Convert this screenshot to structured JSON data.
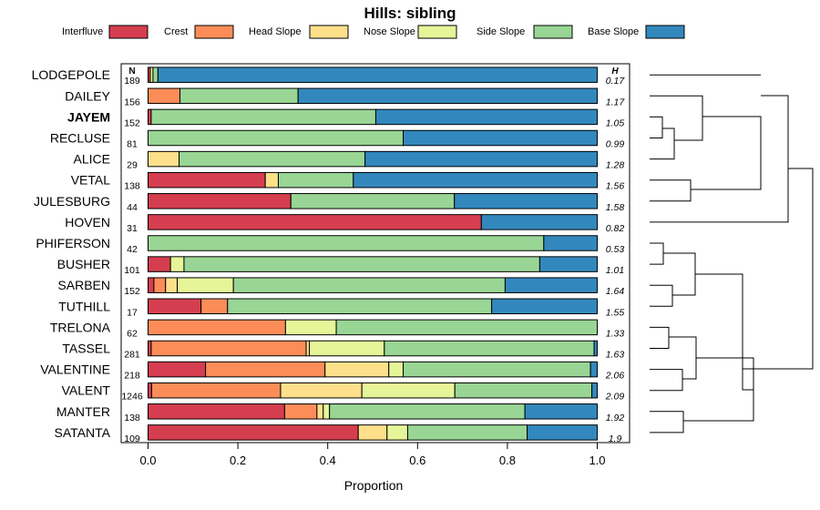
{
  "chart_data": {
    "type": "bar",
    "orientation": "horizontal-stacked",
    "title": "Hills: sibling",
    "xlabel": "Proportion",
    "xlim": [
      0,
      1
    ],
    "xticks": [
      "0.0",
      "0.2",
      "0.4",
      "0.6",
      "0.8",
      "1.0"
    ],
    "n_header": "N",
    "h_header": "H",
    "bold_category": "JAYEM",
    "series": [
      {
        "name": "Interfluve",
        "color": "#d53e4f"
      },
      {
        "name": "Crest",
        "color": "#fc8d59"
      },
      {
        "name": "Head Slope",
        "color": "#fee08b"
      },
      {
        "name": "Nose Slope",
        "color": "#e6f598"
      },
      {
        "name": "Side Slope",
        "color": "#99d594"
      },
      {
        "name": "Base Slope",
        "color": "#3288bd"
      }
    ],
    "rows": [
      {
        "name": "LODGEPOLE",
        "n": "189",
        "h": "0.17",
        "values": [
          0.005,
          0.0,
          0.0,
          0.006,
          0.011,
          0.978
        ]
      },
      {
        "name": "DAILEY",
        "n": "156",
        "h": "1.17",
        "values": [
          0.0,
          0.071,
          0.0,
          0.0,
          0.263,
          0.666
        ]
      },
      {
        "name": "JAYEM",
        "n": "152",
        "h": "1.05",
        "values": [
          0.007,
          0.0,
          0.0,
          0.0,
          0.5,
          0.493
        ]
      },
      {
        "name": "RECLUSE",
        "n": "81",
        "h": "0.99",
        "values": [
          0.0,
          0.0,
          0.0,
          0.0,
          0.568,
          0.432
        ]
      },
      {
        "name": "ALICE",
        "n": "29",
        "h": "1.28",
        "values": [
          0.0,
          0.0,
          0.069,
          0.0,
          0.414,
          0.517
        ]
      },
      {
        "name": "VETAL",
        "n": "138",
        "h": "1.56",
        "values": [
          0.261,
          0.0,
          0.029,
          0.0,
          0.167,
          0.543
        ]
      },
      {
        "name": "JULESBURG",
        "n": "44",
        "h": "1.58",
        "values": [
          0.318,
          0.0,
          0.0,
          0.0,
          0.364,
          0.318
        ]
      },
      {
        "name": "HOVEN",
        "n": "31",
        "h": "0.82",
        "values": [
          0.742,
          0.0,
          0.0,
          0.0,
          0.0,
          0.258
        ]
      },
      {
        "name": "PHIFERSON",
        "n": "42",
        "h": "0.53",
        "values": [
          0.0,
          0.0,
          0.0,
          0.0,
          0.881,
          0.119
        ]
      },
      {
        "name": "BUSHER",
        "n": "101",
        "h": "1.01",
        "values": [
          0.05,
          0.0,
          0.0,
          0.03,
          0.792,
          0.128
        ]
      },
      {
        "name": "SARBEN",
        "n": "152",
        "h": "1.64",
        "values": [
          0.013,
          0.026,
          0.026,
          0.125,
          0.605,
          0.205
        ]
      },
      {
        "name": "TUTHILL",
        "n": "17",
        "h": "1.55",
        "values": [
          0.118,
          0.059,
          0.0,
          0.0,
          0.588,
          0.235
        ]
      },
      {
        "name": "TRELONA",
        "n": "62",
        "h": "1.33",
        "values": [
          0.0,
          0.306,
          0.0,
          0.113,
          0.581,
          0.0
        ]
      },
      {
        "name": "TASSEL",
        "n": "281",
        "h": "1.63",
        "values": [
          0.007,
          0.345,
          0.007,
          0.167,
          0.467,
          0.007
        ]
      },
      {
        "name": "VALENTINE",
        "n": "218",
        "h": "2.06",
        "values": [
          0.128,
          0.266,
          0.142,
          0.032,
          0.417,
          0.015
        ]
      },
      {
        "name": "VALENT",
        "n": "1246",
        "h": "2.09",
        "values": [
          0.008,
          0.287,
          0.181,
          0.207,
          0.305,
          0.012
        ]
      },
      {
        "name": "MANTER",
        "n": "138",
        "h": "1.92",
        "values": [
          0.304,
          0.072,
          0.014,
          0.014,
          0.435,
          0.161
        ]
      },
      {
        "name": "SATANTA",
        "n": "109",
        "h": "1.9",
        "values": [
          0.468,
          0.0,
          0.064,
          0.046,
          0.266,
          0.156
        ]
      }
    ]
  }
}
